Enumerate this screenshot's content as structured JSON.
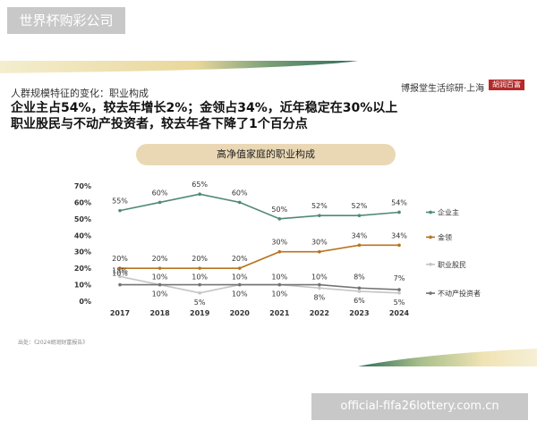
{
  "watermarks": {
    "top": "世界杯购彩公司",
    "bottom": "official-fifa26lottery.com.cn"
  },
  "slide": {
    "subtitle": "人群规模特征的变化：职业构成",
    "headline_line1": "企业主占54%，较去年增长2%；金领占34%，近年稳定在30%以上",
    "headline_line2": "职业股民与不动产投资者，较去年各下降了1个百分点",
    "brand": "博报堂生活综研·上海",
    "brand_logo": "胡润百富",
    "source": "出处：《2024胡润财富报告》"
  },
  "colors": {
    "entrepreneur": "#4e8a74",
    "gold_collar": "#b8731f",
    "stock_trader": "#c4c4c4",
    "real_estate": "#737373",
    "pill": "#ead8b5"
  },
  "chart_data": {
    "type": "line",
    "title": "高净值家庭的职业构成",
    "x": [
      "2017",
      "2018",
      "2019",
      "2020",
      "2021",
      "2022",
      "2023",
      "2024"
    ],
    "y_ticks": [
      "0%",
      "10%",
      "20%",
      "30%",
      "40%",
      "50%",
      "60%",
      "70%"
    ],
    "ylim": [
      0,
      70
    ],
    "grid": false,
    "legend_placement": "right",
    "series": [
      {
        "name": "企业主",
        "values": [
          55,
          60,
          65,
          60,
          50,
          52,
          52,
          54
        ],
        "labels": [
          "55%",
          "60%",
          "65%",
          "60%",
          "50%",
          "52%",
          "52%",
          "54%"
        ]
      },
      {
        "name": "金领",
        "values": [
          20,
          20,
          20,
          20,
          30,
          30,
          34,
          34
        ],
        "labels": [
          "20%",
          "20%",
          "20%",
          "20%",
          "30%",
          "30%",
          "34%",
          "34%"
        ]
      },
      {
        "name": "职业股民",
        "values": [
          15,
          10,
          5,
          10,
          10,
          8,
          6,
          5
        ],
        "labels": [
          "15%",
          "10%",
          "5%",
          "10%",
          "10%",
          "8%",
          "6%",
          "5%"
        ]
      },
      {
        "name": "不动产投资者",
        "values": [
          10,
          10,
          10,
          10,
          10,
          10,
          8,
          7
        ],
        "labels": [
          "10%",
          "10%",
          "10%",
          "10%",
          "10%",
          "10%",
          "8%",
          "7%"
        ]
      }
    ]
  }
}
